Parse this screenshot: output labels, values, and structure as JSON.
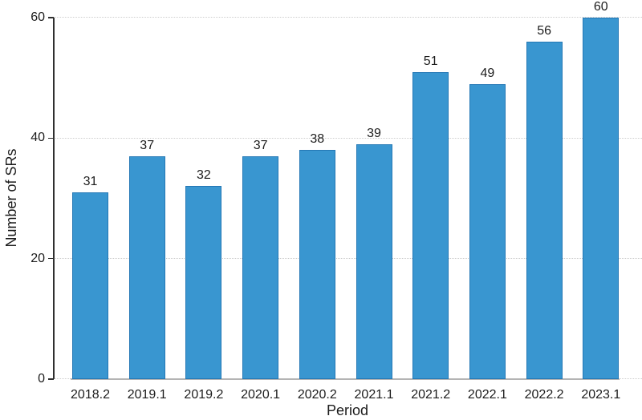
{
  "chart_data": {
    "type": "bar",
    "title": "",
    "xlabel": "Period",
    "ylabel": "Number of SRs",
    "categories": [
      "2018.2",
      "2019.1",
      "2019.2",
      "2020.1",
      "2020.2",
      "2021.1",
      "2021.2",
      "2022.1",
      "2022.2",
      "2023.1"
    ],
    "values": [
      31,
      37,
      32,
      37,
      38,
      39,
      51,
      49,
      56,
      60
    ],
    "value_labels": [
      "31",
      "37",
      "32",
      "37",
      "38",
      "39",
      "51",
      "49",
      "56",
      "60"
    ],
    "ytick_labels": [
      "0",
      "20",
      "40",
      "60"
    ],
    "yticks": [
      0,
      20,
      40,
      60
    ],
    "ylim": [
      0,
      60
    ],
    "grid": "horizontal-dotted",
    "legend_position": "none",
    "bar_fill_color": "#3996d0",
    "bar_border_color": "#2478b5",
    "gridline_color": "#cdcdcd",
    "axis_line_color": "#303030",
    "text_color": "#1c1c1c"
  }
}
